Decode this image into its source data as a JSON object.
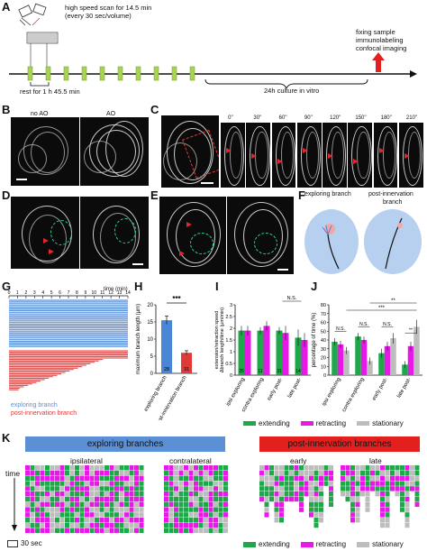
{
  "panelA": {
    "label": "A",
    "scan_text1": "high speed scan for 14.5 min",
    "scan_text2": "(every 30 sec/volume)",
    "rest_text": "rest for 1 h 45.5 min",
    "culture_text": "24h culture in vitro",
    "fix_text1": "fixing sample",
    "fix_text2": "immunolabeling",
    "fix_text3": "confocal imaging"
  },
  "panelB": {
    "label": "B",
    "left": "no AO",
    "right": "AO"
  },
  "panelC": {
    "label": "C",
    "times": [
      "0''",
      "30''",
      "60''",
      "90''",
      "120''",
      "150''",
      "180''",
      "210''"
    ]
  },
  "panelD": {
    "label": "D"
  },
  "panelE": {
    "label": "E"
  },
  "panelF": {
    "label": "F",
    "left": "exploring branch",
    "right1": "post-innervation",
    "right2": "branch"
  },
  "panelG": {
    "label": "G",
    "time_label": "time (min)",
    "ticks": [
      "0",
      "1",
      "2",
      "3",
      "4",
      "5",
      "6",
      "7",
      "8",
      "9",
      "10",
      "11",
      "12",
      "13",
      "14"
    ],
    "legend_exploring": "exploring branch",
    "legend_post": "post-innervation branch",
    "colors": {
      "exploring": "#5b8fd6",
      "post": "#e03a3a"
    }
  },
  "panelH": {
    "label": "H",
    "ylabel": "maximum branch length (µm)",
    "sig": "***",
    "chart_data": {
      "type": "bar",
      "categories": [
        "exploring branch",
        "post-innervation branch"
      ],
      "values": [
        15.5,
        6.0
      ],
      "errors": [
        1.2,
        0.6
      ],
      "n": [
        "28",
        "31"
      ],
      "ylim": [
        0,
        20
      ],
      "yticks": [
        "0",
        "5",
        "10",
        "15",
        "20"
      ],
      "colors": [
        "#4a86d6",
        "#e03a3a"
      ]
    }
  },
  "panelI": {
    "label": "I",
    "ylabel1": "extension/retraction speed",
    "ylabel2": "Δbranch length/time (µm/min)",
    "ns": "N.S.",
    "chart_data": {
      "type": "bar",
      "categories": [
        "ipsi exploring",
        "contra exploring",
        "early post-",
        "late post-"
      ],
      "series": [
        {
          "name": "extending",
          "values": [
            1.9,
            1.9,
            1.9,
            1.6
          ],
          "errors": [
            0.2,
            0.15,
            0.15,
            0.35
          ]
        },
        {
          "name": "retracting",
          "values": [
            1.9,
            2.1,
            1.8,
            1.5
          ],
          "errors": [
            0.2,
            0.2,
            0.3,
            0.3
          ]
        }
      ],
      "n": [
        "25",
        "11",
        "31",
        "14"
      ],
      "ylim": [
        0,
        3
      ],
      "yticks": [
        "0",
        "0.5",
        "1",
        "1.5",
        "2",
        "2.5",
        "3"
      ]
    }
  },
  "panelJ": {
    "label": "J",
    "ylabel": "percentage of time (%)",
    "sig": [
      "N.S.",
      "N.S.",
      "N.S.",
      "**",
      "***",
      "**"
    ],
    "chart_data": {
      "type": "bar",
      "categories": [
        "ipsi exploring",
        "contra exploring",
        "early post-",
        "late post-"
      ],
      "series": [
        {
          "name": "extending",
          "values": [
            38,
            44,
            25,
            12
          ],
          "errors": [
            4,
            4,
            5,
            4
          ]
        },
        {
          "name": "retracting",
          "values": [
            35,
            40,
            33,
            33
          ],
          "errors": [
            4,
            4,
            5,
            5
          ]
        },
        {
          "name": "stationary",
          "values": [
            28,
            16,
            42,
            55
          ],
          "errors": [
            4,
            4,
            6,
            8
          ]
        }
      ],
      "ylim": [
        0,
        80
      ],
      "yticks": [
        "0",
        "10",
        "20",
        "30",
        "40",
        "50",
        "60",
        "70",
        "80"
      ]
    }
  },
  "legendIJ": {
    "extending": "extending",
    "retracting": "retracting",
    "stationary": "stationary",
    "colors": {
      "extending": "#1fa84a",
      "retracting": "#e619e6",
      "stationary": "#bdbdbd"
    }
  },
  "panelK": {
    "label": "K",
    "header_exploring": "exploring branches",
    "header_post": "post-innervation branches",
    "ipsi": "ipsilateral",
    "contra": "contralateral",
    "early": "early",
    "late": "late",
    "time": "time",
    "scale": "30 sec",
    "legend_extending": "extending",
    "legend_retracting": "retracting",
    "legend_stationary": "stationary",
    "colors": {
      "header_exploring": "#5b8fd6",
      "header_post": "#e4201e"
    }
  }
}
